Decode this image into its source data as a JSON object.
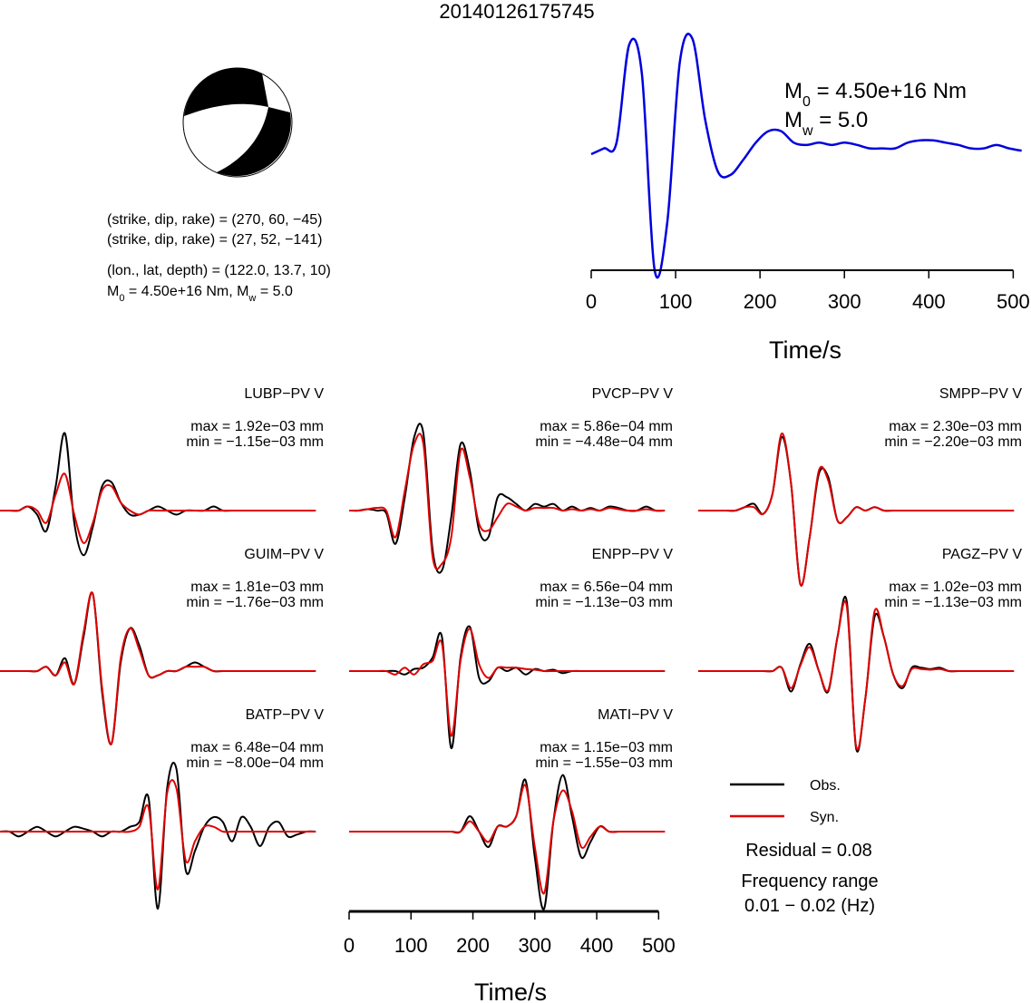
{
  "title": "20140126175745",
  "focal_mechanism": {
    "lines": [
      "(strike, dip, rake) = (270, 60, −45)",
      "(strike, dip, rake) = (27, 52, −141)",
      "(lon., lat, depth) = (122.0, 13.7, 10)"
    ],
    "moment": [
      "M",
      "0",
      " = 4.50e+16 Nm, M",
      "w",
      " = 5.0"
    ]
  },
  "legend": {
    "entries": [
      {
        "name": "Obs.",
        "color": "#000000"
      },
      {
        "name": "Syn.",
        "color": "#e00000"
      }
    ],
    "residual": "Residual = 0.08",
    "frequency_title": "Frequency range",
    "frequency": "0.01 − 0.02 (Hz)"
  },
  "chart_data": [
    {
      "type": "line",
      "color": "#0000dd",
      "xlabel": "Time/s",
      "xlim": [
        0,
        520
      ],
      "xticks": [
        0,
        100,
        200,
        300,
        400,
        500
      ],
      "annotations": [
        [
          "M",
          "0",
          " = 4.50e+16 Nm"
        ],
        [
          "M",
          "w",
          " = 5.0"
        ]
      ],
      "x": [
        0,
        15,
        30,
        45,
        60,
        75,
        90,
        105,
        120,
        135,
        150,
        165,
        180,
        195,
        210,
        225,
        240,
        255,
        270,
        285,
        300,
        315,
        330,
        345,
        360,
        375,
        390,
        405,
        420,
        435,
        450,
        465,
        480,
        495,
        510
      ],
      "values": [
        0,
        0.05,
        0.1,
        0.95,
        0.7,
        -1.0,
        -0.6,
        0.8,
        1.0,
        0.3,
        -0.15,
        -0.18,
        -0.05,
        0.1,
        0.2,
        0.2,
        0.1,
        0.08,
        0.1,
        0.08,
        0.1,
        0.08,
        0.05,
        0.05,
        0.05,
        0.1,
        0.12,
        0.12,
        0.1,
        0.08,
        0.05,
        0.05,
        0.08,
        0.05,
        0.03
      ]
    },
    {
      "type": "waveform",
      "station": "LUBP−PV V",
      "max_label": "max = 1.92e−03 mm",
      "min_label": "min = −1.15e−03 mm",
      "xlim": [
        0,
        520
      ],
      "x": [
        0,
        15,
        30,
        45,
        60,
        75,
        90,
        105,
        120,
        135,
        150,
        165,
        180,
        195,
        210,
        225,
        240,
        255,
        270,
        285,
        300,
        315,
        330,
        345,
        360,
        375,
        390,
        405,
        420,
        435,
        450,
        465,
        480,
        495,
        510
      ],
      "series": [
        {
          "values": [
            0,
            0,
            0,
            0.0001,
            -0.0001,
            -0.0005,
            0.0006,
            0.0019,
            -0.0003,
            -0.0011,
            -0.0004,
            0.0006,
            0.0007,
            0.0002,
            -0.0001,
            -0.0001,
            0,
            0.0001,
            0,
            -0.0001,
            0,
            0,
            0,
            0.0001,
            0,
            0,
            0,
            0,
            0,
            0,
            0,
            0,
            0,
            0,
            0
          ]
        },
        {
          "values": [
            0,
            0,
            0,
            0.0001,
            0,
            -0.0003,
            0.0004,
            0.0009,
            -0.0001,
            -0.0008,
            -0.0003,
            0.0005,
            0.0006,
            0.0002,
            0,
            -0.0001,
            0,
            0,
            0,
            0,
            0,
            0,
            0,
            0,
            0,
            0,
            0,
            0,
            0,
            0,
            0,
            0,
            0,
            0,
            0
          ]
        }
      ]
    },
    {
      "type": "waveform",
      "station": "PVCP−PV V",
      "max_label": "max = 5.86e−04 mm",
      "min_label": "min = −4.48e−04 mm",
      "xlim": [
        0,
        520
      ],
      "x": [
        0,
        15,
        30,
        45,
        60,
        75,
        90,
        105,
        120,
        135,
        150,
        165,
        180,
        195,
        210,
        225,
        240,
        255,
        270,
        285,
        300,
        315,
        330,
        345,
        360,
        375,
        390,
        405,
        420,
        435,
        450,
        465,
        480,
        495,
        510
      ],
      "series": [
        {
          "values": [
            0,
            0,
            1e-05,
            0,
            -2e-05,
            -0.00025,
            0.0001,
            0.00055,
            0.00058,
            -0.0003,
            -0.00045,
            -5e-05,
            0.0005,
            0.0003,
            -0.00015,
            -0.0002,
            0.0001,
            0.0001,
            5e-05,
            0,
            5e-05,
            3e-05,
            5e-05,
            0,
            3e-05,
            0,
            2e-05,
            0,
            3e-05,
            2e-05,
            0,
            0,
            3e-05,
            0,
            0
          ]
        },
        {
          "values": [
            0,
            0,
            1e-05,
            2e-05,
            0,
            -0.0002,
            0.00015,
            0.0005,
            0.0005,
            -0.00035,
            -0.0004,
            -0.0002,
            0.00045,
            0.00025,
            -0.0001,
            -0.00015,
            -5e-05,
            5e-05,
            3e-05,
            0,
            2e-05,
            2e-05,
            2e-05,
            0,
            1e-05,
            0,
            1e-05,
            0,
            2e-05,
            1e-05,
            0,
            0,
            1e-05,
            0,
            0
          ]
        }
      ]
    },
    {
      "type": "waveform",
      "station": "SMPP−PV V",
      "max_label": "max = 2.30e−03 mm",
      "min_label": "min = −2.20e−03 mm",
      "xlim": [
        0,
        520
      ],
      "x": [
        0,
        15,
        30,
        45,
        60,
        75,
        90,
        105,
        120,
        135,
        150,
        165,
        180,
        195,
        210,
        225,
        240,
        255,
        270,
        285,
        300,
        315,
        330,
        345,
        360,
        375,
        390,
        405,
        420,
        435,
        450,
        465,
        480,
        495,
        510
      ],
      "series": [
        {
          "values": [
            0,
            0,
            0,
            0,
            0,
            0.0001,
            0.0002,
            -0.0001,
            0.0005,
            0.0022,
            0.0008,
            -0.0022,
            -0.0008,
            0.0011,
            0.001,
            -0.0003,
            -0.0002,
            0.0001,
            0,
            0.0001,
            0,
            0,
            0,
            0,
            0,
            0,
            0,
            0,
            0,
            0,
            0,
            0,
            0,
            0,
            0
          ]
        },
        {
          "values": [
            0,
            0,
            0,
            0,
            0,
            0.0001,
            0.0001,
            -0.0001,
            0.0005,
            0.0023,
            0.0008,
            -0.0022,
            -0.0008,
            0.0012,
            0.0009,
            -0.0003,
            -0.0002,
            0.0001,
            0,
            0.0001,
            0,
            0,
            0,
            0,
            0,
            0,
            0,
            0,
            0,
            0,
            0,
            0,
            0,
            0,
            0
          ]
        }
      ]
    },
    {
      "type": "waveform",
      "station": "GUIM−PV V",
      "max_label": "max = 1.81e−03 mm",
      "min_label": "min = −1.76e−03 mm",
      "xlim": [
        0,
        520
      ],
      "x": [
        0,
        15,
        30,
        45,
        60,
        75,
        90,
        105,
        120,
        135,
        150,
        165,
        180,
        195,
        210,
        225,
        240,
        255,
        270,
        285,
        300,
        315,
        330,
        345,
        360,
        375,
        390,
        405,
        420,
        435,
        450,
        465,
        480,
        495,
        510
      ],
      "series": [
        {
          "values": [
            0,
            0,
            0,
            0,
            0,
            0.0001,
            -0.0001,
            0.0003,
            -0.0003,
            0.0008,
            0.0018,
            -0.0005,
            -0.0017,
            0.0002,
            0.001,
            0.0006,
            -0.0001,
            -0.0001,
            0,
            0,
            0.0001,
            0.0002,
            0.0001,
            0,
            0,
            0,
            0,
            0,
            0,
            0,
            0,
            0,
            0,
            0,
            0
          ]
        },
        {
          "values": [
            0,
            0,
            0,
            0,
            0,
            0.0001,
            -0.0001,
            0.0002,
            -0.0003,
            0.0009,
            0.0018,
            -0.0004,
            -0.0017,
            0.0003,
            0.001,
            0.0005,
            -0.0001,
            -0.0001,
            0,
            0,
            0.0001,
            0.0001,
            0.0001,
            0,
            0,
            0,
            0,
            0,
            0,
            0,
            0,
            0,
            0,
            0,
            0
          ]
        }
      ]
    },
    {
      "type": "waveform",
      "station": "ENPP−PV V",
      "max_label": "max = 6.56e−04 mm",
      "min_label": "min = −1.13e−03 mm",
      "xlim": [
        0,
        520
      ],
      "x": [
        0,
        15,
        30,
        45,
        60,
        75,
        90,
        105,
        120,
        135,
        150,
        165,
        180,
        195,
        210,
        225,
        240,
        255,
        270,
        285,
        300,
        315,
        330,
        345,
        360,
        375,
        390,
        405,
        420,
        435,
        450,
        465,
        480,
        495,
        510
      ],
      "series": [
        {
          "values": [
            0,
            0,
            0,
            0,
            0,
            0,
            -5e-05,
            3e-05,
            5e-05,
            0.0002,
            0.0005,
            -0.00113,
            0.0002,
            0.00065,
            -0.0001,
            -0.00015,
            5e-05,
            0,
            5e-05,
            -5e-05,
            3e-05,
            0,
            2e-05,
            -3e-05,
            0,
            0,
            0,
            0,
            0,
            0,
            0,
            0,
            0,
            0,
            0
          ]
        },
        {
          "values": [
            0,
            0,
            0,
            0,
            0,
            -5e-05,
            5e-05,
            -5e-05,
            0.0001,
            0.00015,
            0.0004,
            -0.00095,
            0.00015,
            0.00062,
            0.0001,
            -0.0001,
            5e-05,
            5e-05,
            5e-05,
            3e-05,
            2e-05,
            0,
            0,
            0,
            0,
            0,
            0,
            0,
            0,
            0,
            0,
            0,
            0,
            0,
            0
          ]
        }
      ]
    },
    {
      "type": "waveform",
      "station": "PAGZ−PV V",
      "max_label": "max = 1.02e−03 mm",
      "min_label": "min = −1.13e−03 mm",
      "xlim": [
        0,
        520
      ],
      "x": [
        0,
        15,
        30,
        45,
        60,
        75,
        90,
        105,
        120,
        135,
        150,
        165,
        180,
        195,
        210,
        225,
        240,
        255,
        270,
        285,
        300,
        315,
        330,
        345,
        360,
        375,
        390,
        405,
        420,
        435,
        450,
        465,
        480,
        495,
        510
      ],
      "series": [
        {
          "values": [
            0,
            0,
            0,
            0,
            0,
            0,
            0,
            0,
            0,
            5e-05,
            -0.0003,
            0.0001,
            0.0004,
            0,
            -0.0003,
            0.0005,
            0.00102,
            -0.00113,
            -0.0004,
            0.0008,
            0.0005,
            -5e-05,
            -0.00025,
            5e-05,
            5e-05,
            3e-05,
            5e-05,
            0,
            0,
            0,
            0,
            0,
            0,
            0,
            0
          ]
        },
        {
          "values": [
            0,
            0,
            0,
            0,
            0,
            0,
            0,
            0,
            0,
            5e-05,
            -0.00025,
            8e-05,
            0.00035,
            0,
            -0.00028,
            0.0005,
            0.00095,
            -0.0011,
            -0.0004,
            0.00088,
            0.0005,
            -5e-05,
            -0.00022,
            3e-05,
            3e-05,
            2e-05,
            3e-05,
            0,
            0,
            0,
            0,
            0,
            0,
            0,
            0
          ]
        }
      ]
    },
    {
      "type": "waveform",
      "station": "BATP−PV V",
      "max_label": "max = 6.48e−04 mm",
      "min_label": "min = −8.00e−04 mm",
      "xlim": [
        0,
        520
      ],
      "x": [
        0,
        15,
        30,
        45,
        60,
        75,
        90,
        105,
        120,
        135,
        150,
        165,
        180,
        195,
        210,
        225,
        240,
        255,
        270,
        285,
        300,
        315,
        330,
        345,
        360,
        375,
        390,
        405,
        420,
        435,
        450,
        465,
        480,
        495,
        510
      ],
      "series": [
        {
          "values": [
            0,
            0,
            -5e-05,
            0,
            5e-05,
            0,
            -5e-05,
            0,
            5e-05,
            3e-05,
            0,
            -5e-05,
            0,
            0,
            5e-05,
            0.0001,
            0.00035,
            -0.0008,
            0.00045,
            0.00065,
            -0.0004,
            -0.0002,
            5e-05,
            0.00015,
            0.0001,
            -0.0001,
            0.00015,
            5e-05,
            -0.00015,
            5e-05,
            0.0001,
            -5e-05,
            -3e-05,
            0,
            0
          ]
        },
        {
          "values": [
            0,
            0,
            0,
            0,
            0,
            0,
            0,
            0,
            0,
            0,
            0,
            0,
            0,
            0,
            0,
            5e-05,
            0.00025,
            -0.0006,
            0.0004,
            0.00045,
            -0.0003,
            -0.0001,
            5e-05,
            5e-05,
            0,
            0,
            0,
            0,
            0,
            0,
            0,
            0,
            0,
            0,
            0
          ]
        }
      ]
    },
    {
      "type": "waveform",
      "station": "MATI−PV V",
      "max_label": "max = 1.15e−03 mm",
      "min_label": "min = −1.55e−03 mm",
      "xlim": [
        0,
        520
      ],
      "xticks": [
        0,
        100,
        200,
        300,
        400,
        500
      ],
      "xlabel": "Time/s",
      "x": [
        0,
        15,
        30,
        45,
        60,
        75,
        90,
        105,
        120,
        135,
        150,
        165,
        180,
        195,
        210,
        225,
        240,
        255,
        270,
        285,
        300,
        315,
        330,
        345,
        360,
        375,
        390,
        405,
        420,
        435,
        450,
        465,
        480,
        495,
        510
      ],
      "series": [
        {
          "values": [
            0,
            0,
            0,
            0,
            0,
            0,
            0,
            0,
            0,
            0,
            0,
            0,
            0,
            0.0003,
            0,
            -0.0003,
            0.0001,
            0.0001,
            0.0003,
            0.001,
            -0.0005,
            -0.0015,
            0.0002,
            0.0011,
            0.0003,
            -0.0005,
            -0.0002,
            0.0001,
            0,
            0,
            0,
            0,
            0,
            0,
            0
          ]
        },
        {
          "values": [
            0,
            0,
            0,
            0,
            0,
            0,
            0,
            0,
            0,
            0,
            0,
            0,
            0,
            0.0002,
            0,
            -0.0002,
            0.0001,
            0.0001,
            0.0003,
            0.0009,
            -0.0003,
            -0.0012,
            0.0002,
            0.0008,
            0.0004,
            -0.0003,
            -0.0001,
            0.0001,
            0,
            0,
            0,
            0,
            0,
            0,
            0
          ]
        }
      ]
    }
  ]
}
